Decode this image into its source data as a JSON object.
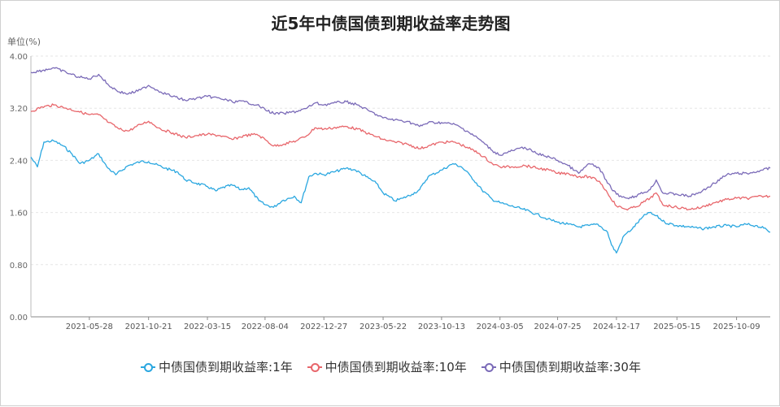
{
  "title": "近5年中债国债到期收益率走势图",
  "unit_label": "单位(%)",
  "chart_data": {
    "type": "line",
    "title": "近5年中债国债到期收益率走势图",
    "ylabel": "单位(%)",
    "ylim": [
      0,
      4
    ],
    "yticks": [
      "0.00",
      "0.80",
      "1.60",
      "2.40",
      "3.20",
      "4.00"
    ],
    "xticks": [
      "2021-05-28",
      "2021-10-21",
      "2022-03-15",
      "2022-08-04",
      "2022-12-27",
      "2023-05-22",
      "2023-10-13",
      "2024-03-05",
      "2024-07-25",
      "2024-12-17",
      "2025-05-15",
      "2025-10-09"
    ],
    "x_range": [
      "2021-01-04",
      "2025-12-31"
    ],
    "grid": "horizontal",
    "legend_position": "bottom",
    "series": [
      {
        "name": "中债国债到期收益率:1年",
        "color": "#2aa7e0",
        "points": [
          [
            "2021-01-04",
            2.45
          ],
          [
            "2021-01-20",
            2.3
          ],
          [
            "2021-02-05",
            2.68
          ],
          [
            "2021-03-01",
            2.7
          ],
          [
            "2021-03-25",
            2.62
          ],
          [
            "2021-04-15",
            2.5
          ],
          [
            "2021-05-05",
            2.35
          ],
          [
            "2021-05-28",
            2.4
          ],
          [
            "2021-06-20",
            2.5
          ],
          [
            "2021-07-10",
            2.3
          ],
          [
            "2021-08-01",
            2.18
          ],
          [
            "2021-09-01",
            2.32
          ],
          [
            "2021-10-01",
            2.38
          ],
          [
            "2021-10-21",
            2.38
          ],
          [
            "2021-12-01",
            2.28
          ],
          [
            "2022-01-01",
            2.22
          ],
          [
            "2022-01-20",
            2.1
          ],
          [
            "2022-02-15",
            2.05
          ],
          [
            "2022-03-15",
            2.0
          ],
          [
            "2022-04-05",
            1.93
          ],
          [
            "2022-04-20",
            1.98
          ],
          [
            "2022-05-15",
            2.02
          ],
          [
            "2022-06-05",
            1.95
          ],
          [
            "2022-06-25",
            1.98
          ],
          [
            "2022-07-20",
            1.78
          ],
          [
            "2022-08-04",
            1.72
          ],
          [
            "2022-08-25",
            1.68
          ],
          [
            "2022-09-15",
            1.78
          ],
          [
            "2022-10-15",
            1.85
          ],
          [
            "2022-11-01",
            1.75
          ],
          [
            "2022-11-20",
            2.15
          ],
          [
            "2022-12-05",
            2.2
          ],
          [
            "2022-12-27",
            2.18
          ],
          [
            "2023-01-20",
            2.22
          ],
          [
            "2023-02-20",
            2.28
          ],
          [
            "2023-03-15",
            2.25
          ],
          [
            "2023-04-10",
            2.15
          ],
          [
            "2023-05-05",
            2.05
          ],
          [
            "2023-05-22",
            1.9
          ],
          [
            "2023-06-20",
            1.78
          ],
          [
            "2023-07-10",
            1.82
          ],
          [
            "2023-08-01",
            1.88
          ],
          [
            "2023-08-20",
            1.95
          ],
          [
            "2023-09-10",
            2.15
          ],
          [
            "2023-10-13",
            2.25
          ],
          [
            "2023-11-10",
            2.35
          ],
          [
            "2023-12-01",
            2.3
          ],
          [
            "2023-12-25",
            2.15
          ],
          [
            "2024-01-20",
            1.95
          ],
          [
            "2024-02-15",
            1.8
          ],
          [
            "2024-03-05",
            1.75
          ],
          [
            "2024-04-01",
            1.7
          ],
          [
            "2024-05-01",
            1.65
          ],
          [
            "2024-06-01",
            1.58
          ],
          [
            "2024-07-01",
            1.5
          ],
          [
            "2024-07-25",
            1.45
          ],
          [
            "2024-08-20",
            1.42
          ],
          [
            "2024-09-15",
            1.38
          ],
          [
            "2024-10-10",
            1.4
          ],
          [
            "2024-11-01",
            1.42
          ],
          [
            "2024-11-25",
            1.3
          ],
          [
            "2024-12-05",
            1.1
          ],
          [
            "2024-12-17",
            0.98
          ],
          [
            "2025-01-05",
            1.25
          ],
          [
            "2025-01-25",
            1.35
          ],
          [
            "2025-02-15",
            1.5
          ],
          [
            "2025-03-05",
            1.6
          ],
          [
            "2025-03-25",
            1.55
          ],
          [
            "2025-04-15",
            1.45
          ],
          [
            "2025-05-15",
            1.4
          ],
          [
            "2025-06-15",
            1.38
          ],
          [
            "2025-07-15",
            1.35
          ],
          [
            "2025-08-15",
            1.38
          ],
          [
            "2025-09-15",
            1.4
          ],
          [
            "2025-10-09",
            1.38
          ],
          [
            "2025-11-01",
            1.42
          ],
          [
            "2025-11-25",
            1.4
          ],
          [
            "2025-12-15",
            1.36
          ],
          [
            "2025-12-31",
            1.3
          ]
        ]
      },
      {
        "name": "中债国债到期收益率:10年",
        "color": "#e8666b",
        "points": [
          [
            "2021-01-04",
            3.15
          ],
          [
            "2021-02-01",
            3.22
          ],
          [
            "2021-03-01",
            3.25
          ],
          [
            "2021-04-01",
            3.2
          ],
          [
            "2021-05-01",
            3.15
          ],
          [
            "2021-05-28",
            3.1
          ],
          [
            "2021-06-20",
            3.1
          ],
          [
            "2021-07-15",
            2.98
          ],
          [
            "2021-08-10",
            2.88
          ],
          [
            "2021-09-01",
            2.85
          ],
          [
            "2021-10-01",
            2.95
          ],
          [
            "2021-10-21",
            3.0
          ],
          [
            "2021-11-20",
            2.88
          ],
          [
            "2021-12-20",
            2.82
          ],
          [
            "2022-01-20",
            2.75
          ],
          [
            "2022-02-15",
            2.78
          ],
          [
            "2022-03-15",
            2.8
          ],
          [
            "2022-04-15",
            2.78
          ],
          [
            "2022-05-15",
            2.72
          ],
          [
            "2022-06-15",
            2.78
          ],
          [
            "2022-07-15",
            2.8
          ],
          [
            "2022-08-04",
            2.72
          ],
          [
            "2022-08-25",
            2.62
          ],
          [
            "2022-09-20",
            2.65
          ],
          [
            "2022-10-20",
            2.7
          ],
          [
            "2022-11-15",
            2.78
          ],
          [
            "2022-12-05",
            2.9
          ],
          [
            "2022-12-27",
            2.88
          ],
          [
            "2023-01-20",
            2.9
          ],
          [
            "2023-02-20",
            2.92
          ],
          [
            "2023-03-20",
            2.88
          ],
          [
            "2023-04-20",
            2.8
          ],
          [
            "2023-05-22",
            2.72
          ],
          [
            "2023-06-20",
            2.68
          ],
          [
            "2023-07-20",
            2.65
          ],
          [
            "2023-08-20",
            2.58
          ],
          [
            "2023-09-10",
            2.62
          ],
          [
            "2023-10-13",
            2.68
          ],
          [
            "2023-11-15",
            2.68
          ],
          [
            "2023-12-15",
            2.6
          ],
          [
            "2024-01-15",
            2.5
          ],
          [
            "2024-02-15",
            2.35
          ],
          [
            "2024-03-05",
            2.3
          ],
          [
            "2024-04-05",
            2.3
          ],
          [
            "2024-05-05",
            2.32
          ],
          [
            "2024-06-05",
            2.28
          ],
          [
            "2024-07-05",
            2.25
          ],
          [
            "2024-07-25",
            2.2
          ],
          [
            "2024-08-20",
            2.2
          ],
          [
            "2024-09-15",
            2.15
          ],
          [
            "2024-10-10",
            2.15
          ],
          [
            "2024-11-05",
            2.08
          ],
          [
            "2024-11-25",
            1.9
          ],
          [
            "2024-12-17",
            1.7
          ],
          [
            "2025-01-10",
            1.65
          ],
          [
            "2025-02-01",
            1.68
          ],
          [
            "2025-03-10",
            1.82
          ],
          [
            "2025-03-25",
            1.9
          ],
          [
            "2025-04-10",
            1.72
          ],
          [
            "2025-05-15",
            1.68
          ],
          [
            "2025-06-15",
            1.65
          ],
          [
            "2025-07-15",
            1.68
          ],
          [
            "2025-08-15",
            1.75
          ],
          [
            "2025-09-15",
            1.8
          ],
          [
            "2025-10-09",
            1.82
          ],
          [
            "2025-11-10",
            1.82
          ],
          [
            "2025-12-10",
            1.85
          ],
          [
            "2025-12-31",
            1.85
          ]
        ]
      },
      {
        "name": "中债国债到期收益率:30年",
        "color": "#7b6bb8",
        "points": [
          [
            "2021-01-04",
            3.75
          ],
          [
            "2021-02-01",
            3.78
          ],
          [
            "2021-03-01",
            3.82
          ],
          [
            "2021-04-01",
            3.75
          ],
          [
            "2021-05-01",
            3.68
          ],
          [
            "2021-05-28",
            3.65
          ],
          [
            "2021-06-20",
            3.72
          ],
          [
            "2021-07-15",
            3.55
          ],
          [
            "2021-08-10",
            3.45
          ],
          [
            "2021-09-01",
            3.42
          ],
          [
            "2021-10-01",
            3.48
          ],
          [
            "2021-10-21",
            3.55
          ],
          [
            "2021-11-20",
            3.45
          ],
          [
            "2021-12-20",
            3.38
          ],
          [
            "2022-01-20",
            3.32
          ],
          [
            "2022-02-15",
            3.35
          ],
          [
            "2022-03-15",
            3.38
          ],
          [
            "2022-04-15",
            3.35
          ],
          [
            "2022-05-15",
            3.3
          ],
          [
            "2022-06-15",
            3.3
          ],
          [
            "2022-07-15",
            3.25
          ],
          [
            "2022-08-04",
            3.18
          ],
          [
            "2022-08-25",
            3.12
          ],
          [
            "2022-09-20",
            3.12
          ],
          [
            "2022-10-20",
            3.15
          ],
          [
            "2022-11-15",
            3.2
          ],
          [
            "2022-12-05",
            3.28
          ],
          [
            "2022-12-27",
            3.25
          ],
          [
            "2023-01-20",
            3.28
          ],
          [
            "2023-02-20",
            3.3
          ],
          [
            "2023-03-20",
            3.25
          ],
          [
            "2023-04-20",
            3.15
          ],
          [
            "2023-05-22",
            3.05
          ],
          [
            "2023-06-20",
            3.02
          ],
          [
            "2023-07-20",
            3.0
          ],
          [
            "2023-08-20",
            2.92
          ],
          [
            "2023-09-10",
            2.98
          ],
          [
            "2023-10-13",
            2.98
          ],
          [
            "2023-11-15",
            2.95
          ],
          [
            "2023-12-15",
            2.85
          ],
          [
            "2024-01-15",
            2.72
          ],
          [
            "2024-02-15",
            2.55
          ],
          [
            "2024-03-05",
            2.48
          ],
          [
            "2024-04-05",
            2.55
          ],
          [
            "2024-05-05",
            2.6
          ],
          [
            "2024-06-05",
            2.5
          ],
          [
            "2024-07-05",
            2.45
          ],
          [
            "2024-07-25",
            2.4
          ],
          [
            "2024-08-20",
            2.32
          ],
          [
            "2024-09-15",
            2.2
          ],
          [
            "2024-10-10",
            2.35
          ],
          [
            "2024-11-05",
            2.28
          ],
          [
            "2024-11-25",
            2.05
          ],
          [
            "2024-12-17",
            1.88
          ],
          [
            "2025-01-10",
            1.82
          ],
          [
            "2025-02-01",
            1.85
          ],
          [
            "2025-03-10",
            1.95
          ],
          [
            "2025-03-25",
            2.1
          ],
          [
            "2025-04-10",
            1.9
          ],
          [
            "2025-05-15",
            1.88
          ],
          [
            "2025-06-15",
            1.85
          ],
          [
            "2025-07-15",
            1.92
          ],
          [
            "2025-08-15",
            2.05
          ],
          [
            "2025-09-15",
            2.18
          ],
          [
            "2025-10-09",
            2.2
          ],
          [
            "2025-11-10",
            2.2
          ],
          [
            "2025-12-10",
            2.25
          ],
          [
            "2025-12-31",
            2.28
          ]
        ]
      }
    ]
  }
}
